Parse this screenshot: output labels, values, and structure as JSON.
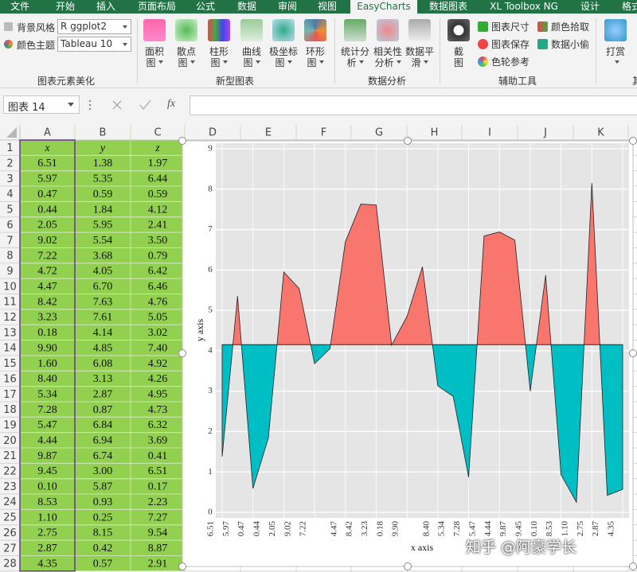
{
  "ribbon": {
    "tabs": [
      "文件",
      "开始",
      "插入",
      "页面布局",
      "公式",
      "数据",
      "审阅",
      "视图",
      "EasyCharts",
      "数据图表",
      "XL Toolbox NG",
      "设计",
      "格式"
    ],
    "active_tab": 8,
    "style_group": {
      "label": "图表元素美化",
      "background_label": "背景风格",
      "background_value": "R ggplot2",
      "color_label": "颜色主题",
      "color_value": "Tableau 10"
    },
    "chart_group": {
      "label": "新型图表",
      "buttons": [
        "面积图",
        "散点图",
        "柱形图",
        "曲线图",
        "极坐标图",
        "环形图"
      ]
    },
    "analysis_group": {
      "label": "数据分析",
      "buttons": [
        "统计分析",
        "相关性分析",
        "数据平滑"
      ]
    },
    "tools_group": {
      "label": "辅助工具",
      "buttons": [
        "截图"
      ],
      "small_buttons": [
        "图表尺寸",
        "图表保存",
        "色轮参考",
        "颜色拾取",
        "数据小偷"
      ]
    },
    "extra_group": {
      "label": "其",
      "buttons": [
        "打赏"
      ]
    }
  },
  "formula_bar": {
    "name_box": "图表 14",
    "fx": "fx"
  },
  "sheet": {
    "columns": [
      "A",
      "B",
      "C",
      "D",
      "E",
      "F",
      "G",
      "H",
      "I",
      "J",
      "K"
    ],
    "row_numbers": [
      1,
      2,
      3,
      4,
      5,
      6,
      7,
      8,
      9,
      10,
      11,
      12,
      13,
      14,
      15,
      16,
      17,
      18,
      19,
      20,
      21,
      22,
      23,
      24,
      25,
      26,
      27,
      28
    ],
    "cells": [
      [
        "x",
        "y",
        "z"
      ],
      [
        "6.51",
        "1.38",
        "1.97"
      ],
      [
        "5.97",
        "5.35",
        "6.44"
      ],
      [
        "0.47",
        "0.59",
        "0.59"
      ],
      [
        "0.44",
        "1.84",
        "4.12"
      ],
      [
        "2.05",
        "5.95",
        "2.41"
      ],
      [
        "9.02",
        "5.54",
        "3.50"
      ],
      [
        "7.22",
        "3.68",
        "0.79"
      ],
      [
        "4.72",
        "4.05",
        "6.42"
      ],
      [
        "4.47",
        "6.70",
        "6.46"
      ],
      [
        "8.42",
        "7.63",
        "4.76"
      ],
      [
        "3.23",
        "7.61",
        "5.05"
      ],
      [
        "0.18",
        "4.14",
        "3.02"
      ],
      [
        "9.90",
        "4.85",
        "7.40"
      ],
      [
        "1.60",
        "6.08",
        "4.92"
      ],
      [
        "8.40",
        "3.13",
        "4.26"
      ],
      [
        "5.34",
        "2.87",
        "4.95"
      ],
      [
        "7.28",
        "0.87",
        "4.73"
      ],
      [
        "5.47",
        "6.84",
        "6.32"
      ],
      [
        "4.44",
        "6.94",
        "3.69"
      ],
      [
        "9.87",
        "6.74",
        "0.41"
      ],
      [
        "9.45",
        "3.00",
        "6.51"
      ],
      [
        "0.10",
        "5.87",
        "0.17"
      ],
      [
        "8.53",
        "0.93",
        "2.23"
      ],
      [
        "1.10",
        "0.25",
        "7.27"
      ],
      [
        "2.75",
        "8.15",
        "9.54"
      ],
      [
        "2.87",
        "0.42",
        "8.87"
      ],
      [
        "4.35",
        "0.57",
        "2.91"
      ]
    ],
    "fill": "#92d050"
  },
  "chart_data": {
    "type": "area",
    "x_label": "x axis",
    "y_label": "y axis",
    "categories": [
      "6.51",
      "5.97",
      "0.47",
      "0.44",
      "2.05",
      "9.02",
      "7.22",
      null,
      "4.47",
      "8.42",
      "3.23",
      "0.18",
      "9.90",
      null,
      "8.40",
      "5.34",
      "7.28",
      "5.47",
      "4.44",
      "9.87",
      "9.45",
      "0.10",
      "8.53",
      "1.10",
      "2.75",
      "2.87",
      "4.35"
    ],
    "values": [
      1.38,
      5.35,
      0.59,
      1.84,
      5.95,
      5.54,
      3.68,
      4.05,
      6.7,
      7.63,
      7.61,
      4.14,
      4.85,
      6.08,
      3.13,
      2.87,
      0.87,
      6.84,
      6.94,
      6.74,
      3.0,
      5.87,
      0.93,
      0.25,
      8.15,
      0.42,
      0.57
    ],
    "baseline": 4.15,
    "color_above": "#f8766d",
    "color_below": "#00bfc4",
    "ylim": [
      0,
      9
    ],
    "yticks": [
      0,
      1,
      2,
      3,
      4,
      5,
      6,
      7,
      8,
      9
    ],
    "grid": true,
    "plot_background": "#e5e5e5"
  },
  "watermark": "知乎 @阿豪学长"
}
